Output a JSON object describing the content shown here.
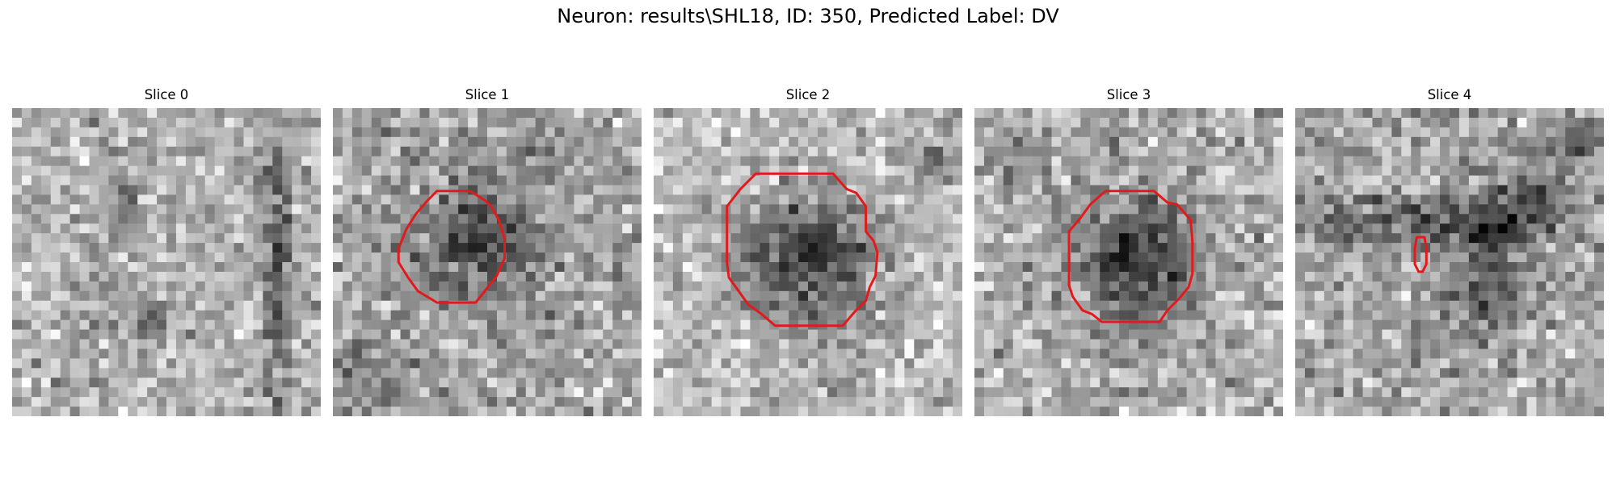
{
  "figure": {
    "title": "Neuron: results\\SHL18, ID: 350, Predicted Label: DV"
  },
  "panels": [
    {
      "title": "Slice 0"
    },
    {
      "title": "Slice 1"
    },
    {
      "title": "Slice 2"
    },
    {
      "title": "Slice 3"
    },
    {
      "title": "Slice 4"
    }
  ],
  "colors": {
    "contour": "#e31a1c",
    "colormap": "gray"
  }
}
